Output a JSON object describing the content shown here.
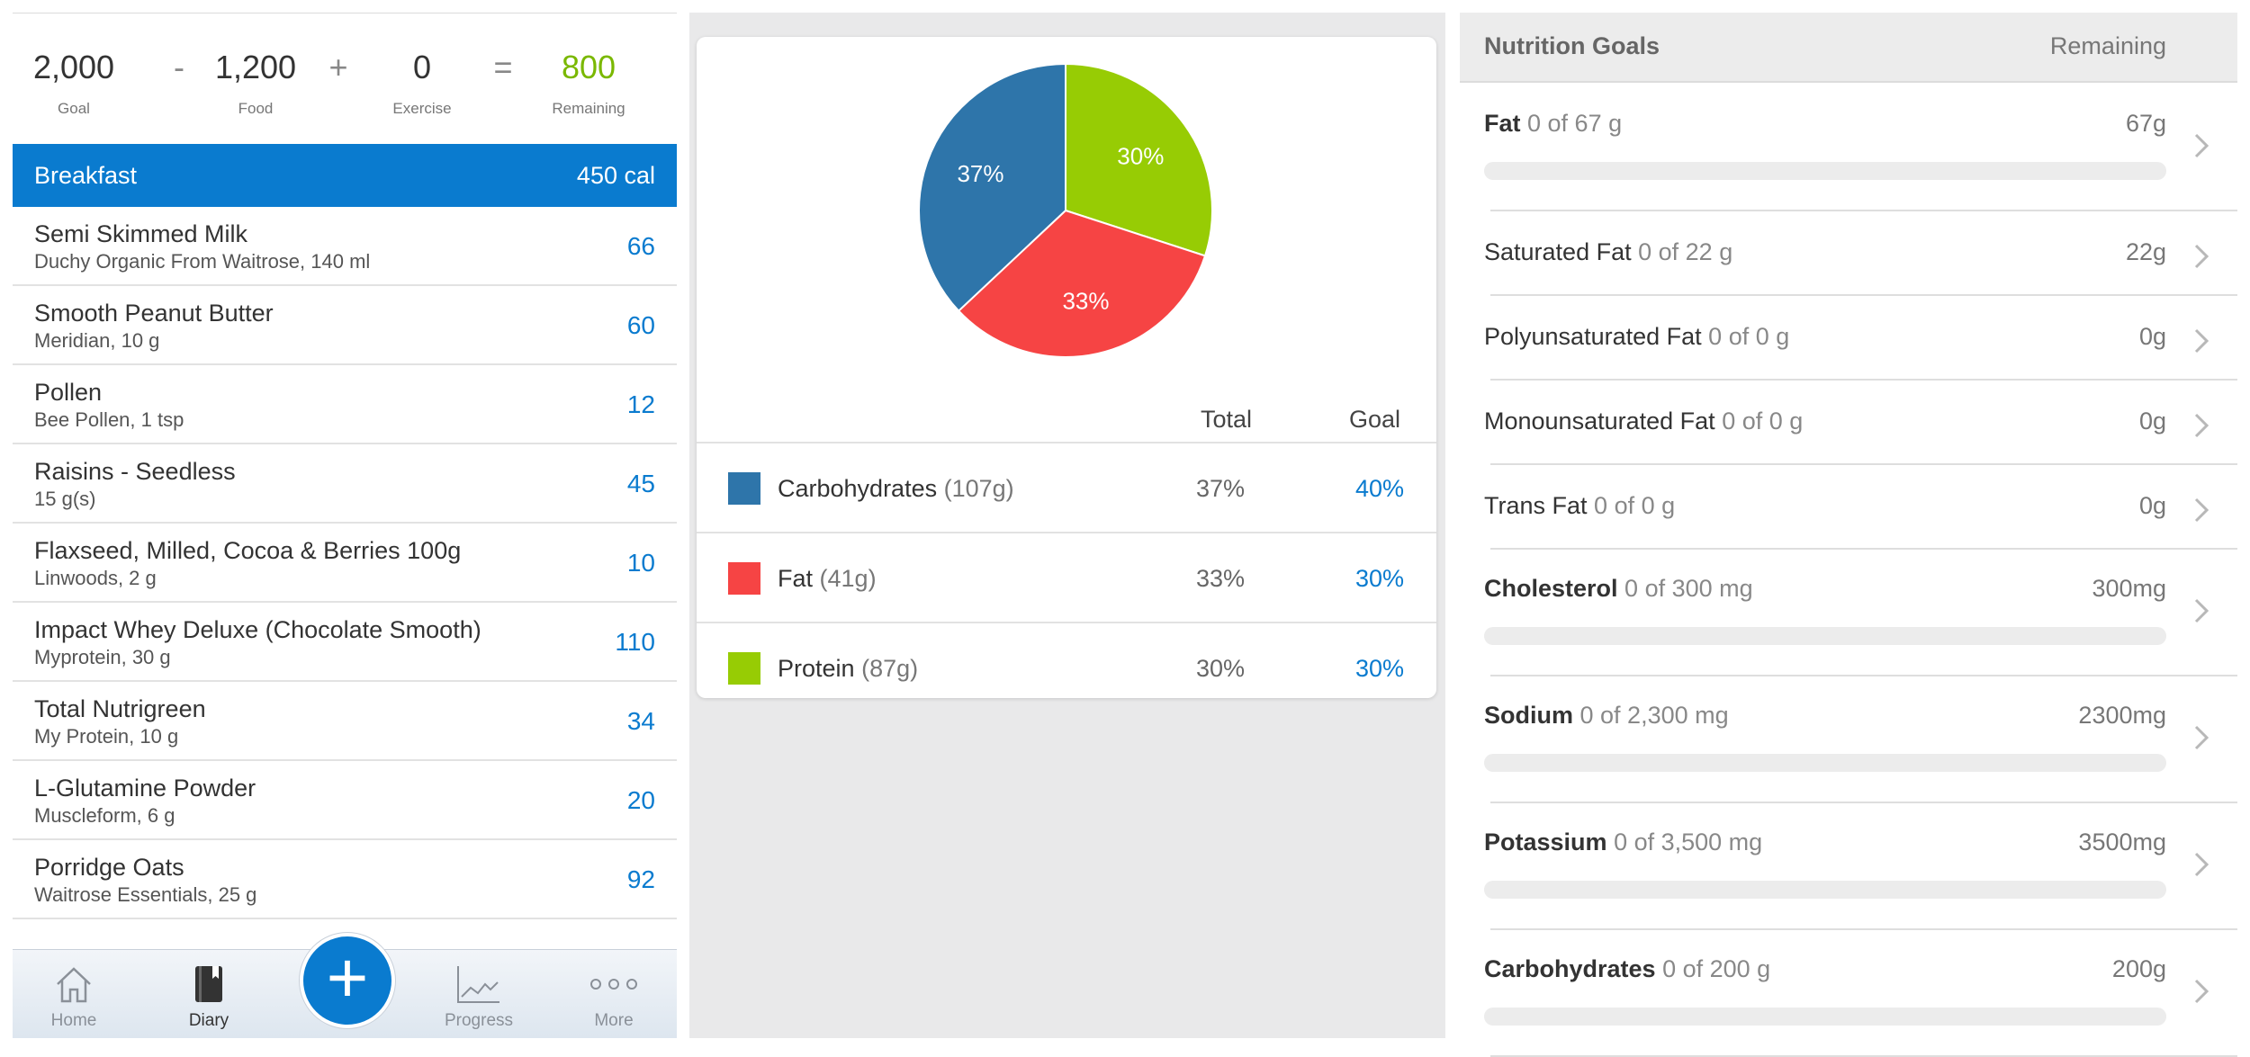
{
  "summary": {
    "goal": {
      "value": "2,000",
      "label": "Goal"
    },
    "food": {
      "value": "1,200",
      "label": "Food"
    },
    "exercise": {
      "value": "0",
      "label": "Exercise"
    },
    "remaining": {
      "value": "800",
      "label": "Remaining"
    },
    "op_minus": "-",
    "op_plus": "+",
    "op_equals": "="
  },
  "meal": {
    "title": "Breakfast",
    "calories": "450 cal",
    "items": [
      {
        "name": "Semi Skimmed Milk",
        "desc": "Duchy Organic From Waitrose, 140 ml",
        "cal": "66"
      },
      {
        "name": "Smooth Peanut Butter",
        "desc": "Meridian, 10 g",
        "cal": "60"
      },
      {
        "name": "Pollen",
        "desc": "Bee Pollen, 1 tsp",
        "cal": "12"
      },
      {
        "name": "Raisins - Seedless",
        "desc": "15 g(s)",
        "cal": "45"
      },
      {
        "name": "Flaxseed, Milled, Cocoa & Berries 100g",
        "desc": "Linwoods, 2 g",
        "cal": "10"
      },
      {
        "name": "Impact Whey Deluxe (Chocolate Smooth)",
        "desc": "Myprotein, 30 g",
        "cal": "110"
      },
      {
        "name": "Total Nutrigreen",
        "desc": "My Protein, 10 g",
        "cal": "34"
      },
      {
        "name": "L-Glutamine Powder",
        "desc": "Muscleform, 6 g",
        "cal": "20"
      },
      {
        "name": "Porridge Oats",
        "desc": "Waitrose Essentials, 25 g",
        "cal": "92"
      }
    ]
  },
  "tabbar": {
    "home": {
      "label": "Home",
      "icon": "home-icon"
    },
    "diary": {
      "label": "Diary",
      "icon": "diary-icon"
    },
    "add": {
      "label": "+",
      "icon": "plus-icon"
    },
    "progress": {
      "label": "Progress",
      "icon": "chart-icon"
    },
    "more": {
      "label": "More",
      "icon": "more-dots-icon"
    }
  },
  "macros": {
    "col_total": "Total",
    "col_goal": "Goal",
    "rows": [
      {
        "name": "Carbohydrates",
        "grams": "(107g)",
        "total": "37%",
        "goal": "40%",
        "color": "#2e75aa"
      },
      {
        "name": "Fat",
        "grams": "(41g)",
        "total": "33%",
        "goal": "30%",
        "color": "#f64444"
      },
      {
        "name": "Protein",
        "grams": "(87g)",
        "total": "30%",
        "goal": "30%",
        "color": "#97cc04"
      }
    ]
  },
  "chart_data": {
    "type": "pie",
    "slices": [
      {
        "label": "Carbohydrates",
        "value": 37,
        "display": "37%",
        "color": "#2e75aa"
      },
      {
        "label": "Fat",
        "value": 33,
        "display": "33%",
        "color": "#f64444"
      },
      {
        "label": "Protein",
        "value": 30,
        "display": "30%",
        "color": "#97cc04"
      }
    ]
  },
  "nutrition_goals": {
    "title": "Nutrition Goals",
    "remaining_label": "Remaining",
    "rows": [
      {
        "name": "Fat",
        "sub": "0 of 67 g",
        "remaining": "67g",
        "bold": true,
        "bar": true,
        "progress": 0
      },
      {
        "name": "Saturated Fat",
        "sub": "0 of 22 g",
        "remaining": "22g",
        "bold": false,
        "bar": false
      },
      {
        "name": "Polyunsaturated Fat",
        "sub": "0 of 0 g",
        "remaining": "0g",
        "bold": false,
        "bar": false
      },
      {
        "name": "Monounsaturated Fat",
        "sub": "0 of 0 g",
        "remaining": "0g",
        "bold": false,
        "bar": false
      },
      {
        "name": "Trans Fat",
        "sub": "0 of 0 g",
        "remaining": "0g",
        "bold": false,
        "bar": false
      },
      {
        "name": "Cholesterol",
        "sub": "0 of 300 mg",
        "remaining": "300mg",
        "bold": true,
        "bar": true,
        "progress": 0
      },
      {
        "name": "Sodium",
        "sub": "0 of 2,300 mg",
        "remaining": "2300mg",
        "bold": true,
        "bar": true,
        "progress": 0
      },
      {
        "name": "Potassium",
        "sub": "0 of 3,500 mg",
        "remaining": "3500mg",
        "bold": true,
        "bar": true,
        "progress": 0
      },
      {
        "name": "Carbohydrates",
        "sub": "0 of 200 g",
        "remaining": "200g",
        "bold": true,
        "bar": true,
        "progress": 0
      }
    ]
  }
}
